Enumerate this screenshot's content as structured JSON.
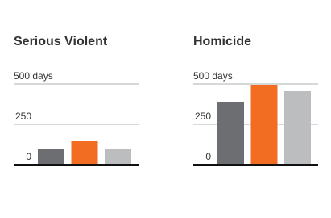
{
  "chart_data": [
    {
      "type": "bar",
      "title": "Serious Violent",
      "categories": [
        null,
        null,
        null
      ],
      "values": [
        95,
        145,
        100
      ],
      "colors": [
        "#6d6e71",
        "#f26c22",
        "#bcbdbf"
      ],
      "ylim": [
        0,
        500
      ],
      "yticks": [
        0,
        250,
        {
          "value": 500,
          "label": "500 days"
        }
      ],
      "grid": true
    },
    {
      "type": "bar",
      "title": "Homicide",
      "categories": [
        null,
        null,
        null
      ],
      "values": [
        390,
        495,
        455
      ],
      "colors": [
        "#6d6e71",
        "#f26c22",
        "#bcbdbf"
      ],
      "ylim": [
        0,
        500
      ],
      "yticks": [
        0,
        250,
        {
          "value": 500,
          "label": "500 days"
        }
      ],
      "grid": true
    }
  ]
}
